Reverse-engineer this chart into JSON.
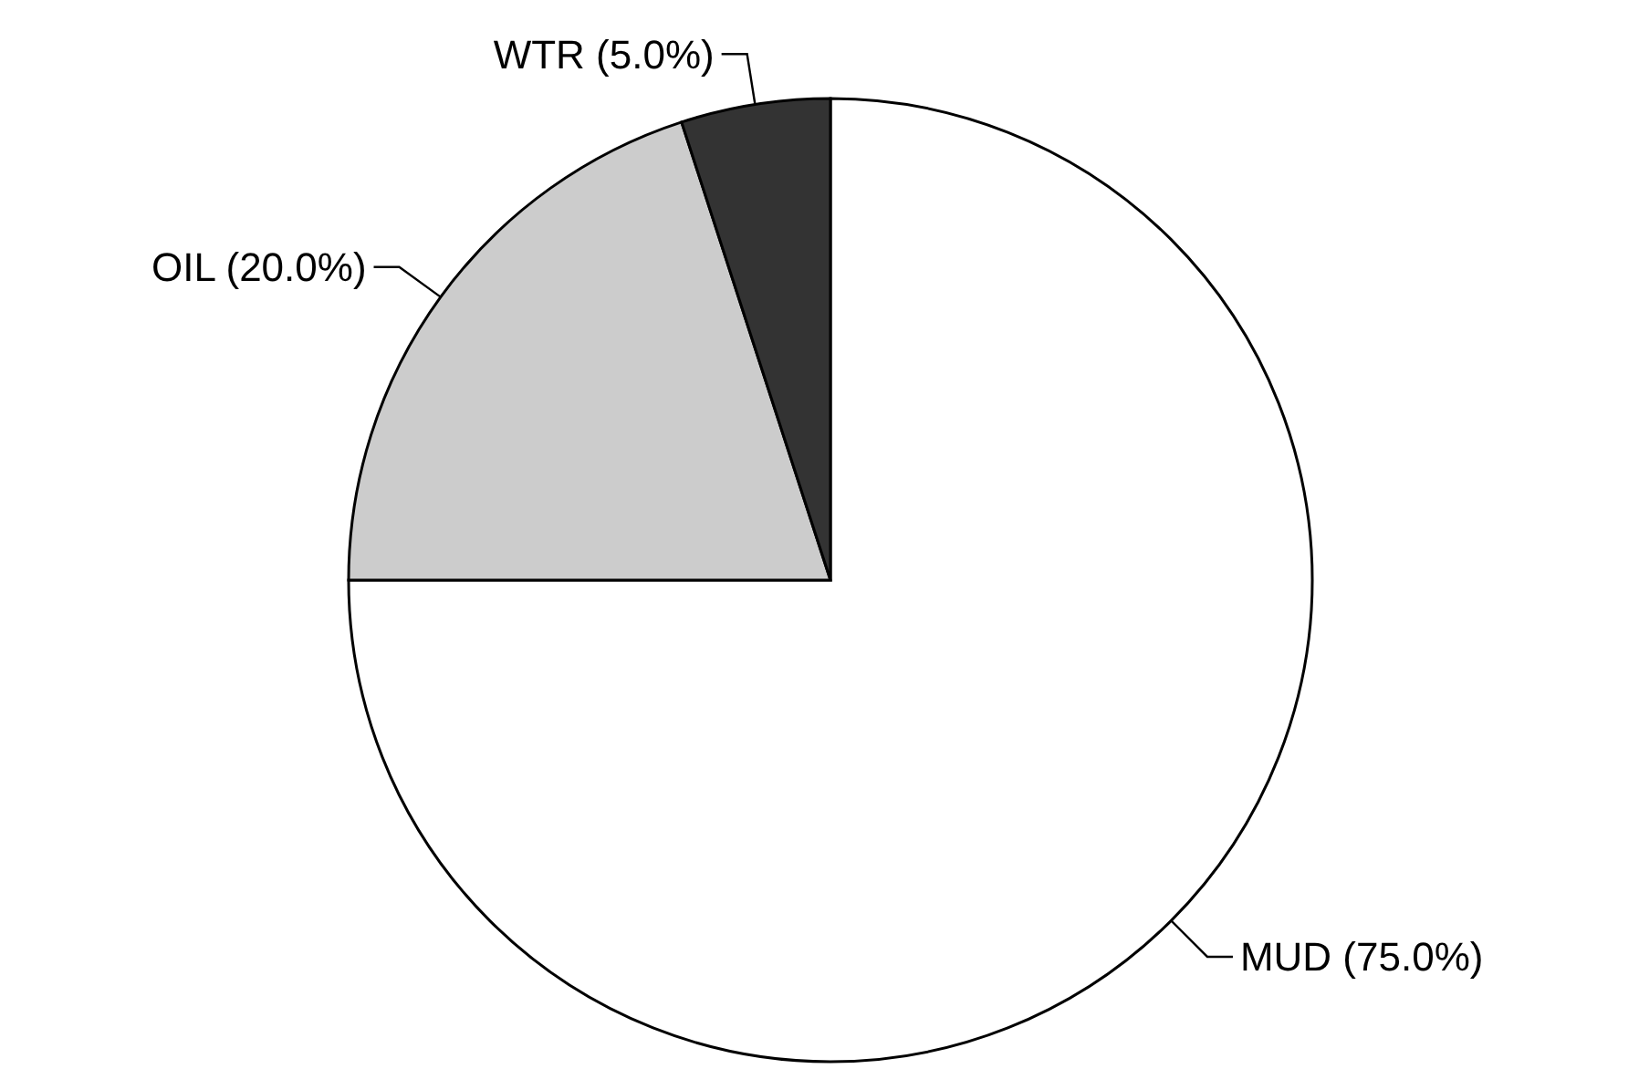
{
  "chart_data": {
    "type": "pie",
    "categories": [
      "MUD (75.0%)",
      "OIL (20.0%)",
      "WTR (5.0%)"
    ],
    "values": [
      75,
      20,
      5
    ],
    "colors": [
      "#ffffff",
      "#cccccc",
      "#333333"
    ]
  }
}
